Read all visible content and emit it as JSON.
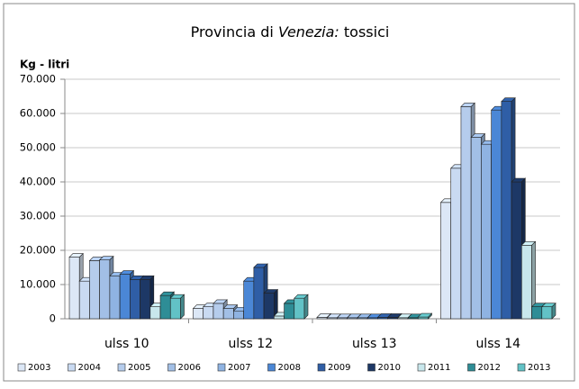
{
  "chart_data": {
    "type": "bar",
    "title": [
      "Provincia di ",
      "Venezia:",
      " tossici"
    ],
    "y_label": "Kg - litri",
    "categories": [
      "ulss 10",
      "ulss 12",
      "ulss 13",
      "ulss 14"
    ],
    "series": [
      {
        "name": "2003",
        "color": "#dce7f6",
        "values": [
          18000,
          3000,
          400,
          34000
        ]
      },
      {
        "name": "2004",
        "color": "#c9daf2",
        "values": [
          11000,
          3500,
          300,
          44000
        ]
      },
      {
        "name": "2005",
        "color": "#b5ccec",
        "values": [
          17000,
          4500,
          300,
          62000
        ]
      },
      {
        "name": "2006",
        "color": "#a2bfe6",
        "values": [
          17200,
          3000,
          300,
          53000
        ]
      },
      {
        "name": "2007",
        "color": "#8fb3e2",
        "values": [
          12500,
          2300,
          300,
          51000
        ]
      },
      {
        "name": "2008",
        "color": "#4b87d6",
        "values": [
          13000,
          11000,
          300,
          61000
        ]
      },
      {
        "name": "2009",
        "color": "#2f5ea6",
        "values": [
          11500,
          15000,
          400,
          63500
        ]
      },
      {
        "name": "2010",
        "color": "#1d3866",
        "values": [
          11500,
          7500,
          400,
          40000
        ]
      },
      {
        "name": "2011",
        "color": "#c8e7ec",
        "values": [
          3500,
          800,
          300,
          21500
        ]
      },
      {
        "name": "2012",
        "color": "#2e8d96",
        "values": [
          6800,
          4500,
          300,
          3500
        ]
      },
      {
        "name": "2013",
        "color": "#62c2c6",
        "values": [
          6000,
          6000,
          500,
          3500
        ]
      }
    ],
    "ylim": [
      0,
      70000
    ],
    "yticks": [
      0,
      {
        "value": 10000,
        "label": "10.000"
      },
      {
        "value": 20000,
        "label": "20.000"
      },
      {
        "value": 30000,
        "label": "30.000"
      },
      {
        "value": 40000,
        "label": "40.000"
      },
      {
        "value": 50000,
        "label": "50.000"
      },
      {
        "value": 60000,
        "label": "60.000"
      },
      {
        "value": 70000,
        "label": "70.000"
      }
    ],
    "grid": true,
    "legend": "bottom"
  }
}
